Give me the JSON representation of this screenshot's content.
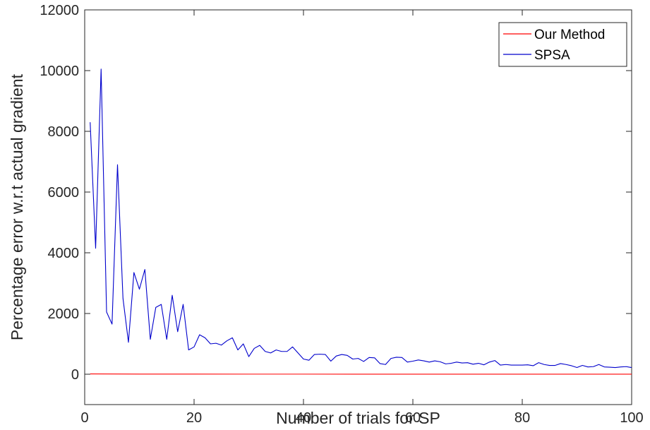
{
  "chart_data": {
    "type": "line",
    "title": "",
    "xlabel": "Number of trials for SP",
    "ylabel": "Percentage error w.r.t actual gradient",
    "xlim": [
      0,
      100
    ],
    "ylim": [
      -1000,
      12000
    ],
    "xticks": [
      0,
      20,
      40,
      60,
      80,
      100
    ],
    "yticks": [
      0,
      2000,
      4000,
      6000,
      8000,
      10000,
      12000
    ],
    "grid": false,
    "legend_position": "top-right",
    "series": [
      {
        "name": "Our Method",
        "color": "#ff0000",
        "x": [
          1,
          10,
          20,
          30,
          40,
          50,
          60,
          70,
          80,
          90,
          100
        ],
        "y": [
          10,
          5,
          5,
          3,
          3,
          2,
          2,
          2,
          2,
          2,
          2
        ]
      },
      {
        "name": "SPSA",
        "color": "#0000cc",
        "x": [
          1,
          2,
          3,
          4,
          5,
          6,
          7,
          8,
          9,
          10,
          11,
          12,
          13,
          14,
          15,
          16,
          17,
          18,
          19,
          20,
          21,
          22,
          23,
          24,
          25,
          26,
          27,
          28,
          29,
          30,
          31,
          32,
          33,
          34,
          35,
          36,
          37,
          38,
          39,
          40,
          41,
          42,
          43,
          44,
          45,
          46,
          47,
          48,
          49,
          50,
          51,
          52,
          53,
          54,
          55,
          56,
          57,
          58,
          59,
          60,
          61,
          62,
          63,
          64,
          65,
          66,
          67,
          68,
          69,
          70,
          71,
          72,
          73,
          74,
          75,
          76,
          77,
          78,
          79,
          80,
          81,
          82,
          83,
          84,
          85,
          86,
          87,
          88,
          89,
          90,
          91,
          92,
          93,
          94,
          95,
          96,
          97,
          98,
          99,
          100
        ],
        "y": [
          8300,
          4150,
          10050,
          2050,
          1650,
          6900,
          2500,
          1050,
          3350,
          2800,
          3450,
          1150,
          2200,
          2300,
          1150,
          2600,
          1400,
          2300,
          800,
          900,
          1300,
          1200,
          1000,
          1020,
          960,
          1100,
          1200,
          800,
          1000,
          580,
          850,
          950,
          750,
          700,
          800,
          750,
          750,
          900,
          700,
          500,
          460,
          650,
          660,
          650,
          430,
          600,
          650,
          620,
          500,
          520,
          420,
          550,
          540,
          350,
          320,
          520,
          560,
          550,
          400,
          430,
          470,
          440,
          400,
          440,
          410,
          340,
          360,
          400,
          370,
          380,
          330,
          360,
          310,
          400,
          450,
          300,
          320,
          300,
          300,
          300,
          310,
          280,
          380,
          320,
          290,
          290,
          350,
          320,
          280,
          220,
          290,
          240,
          250,
          320,
          240,
          230,
          220,
          240,
          250,
          220
        ]
      }
    ]
  }
}
